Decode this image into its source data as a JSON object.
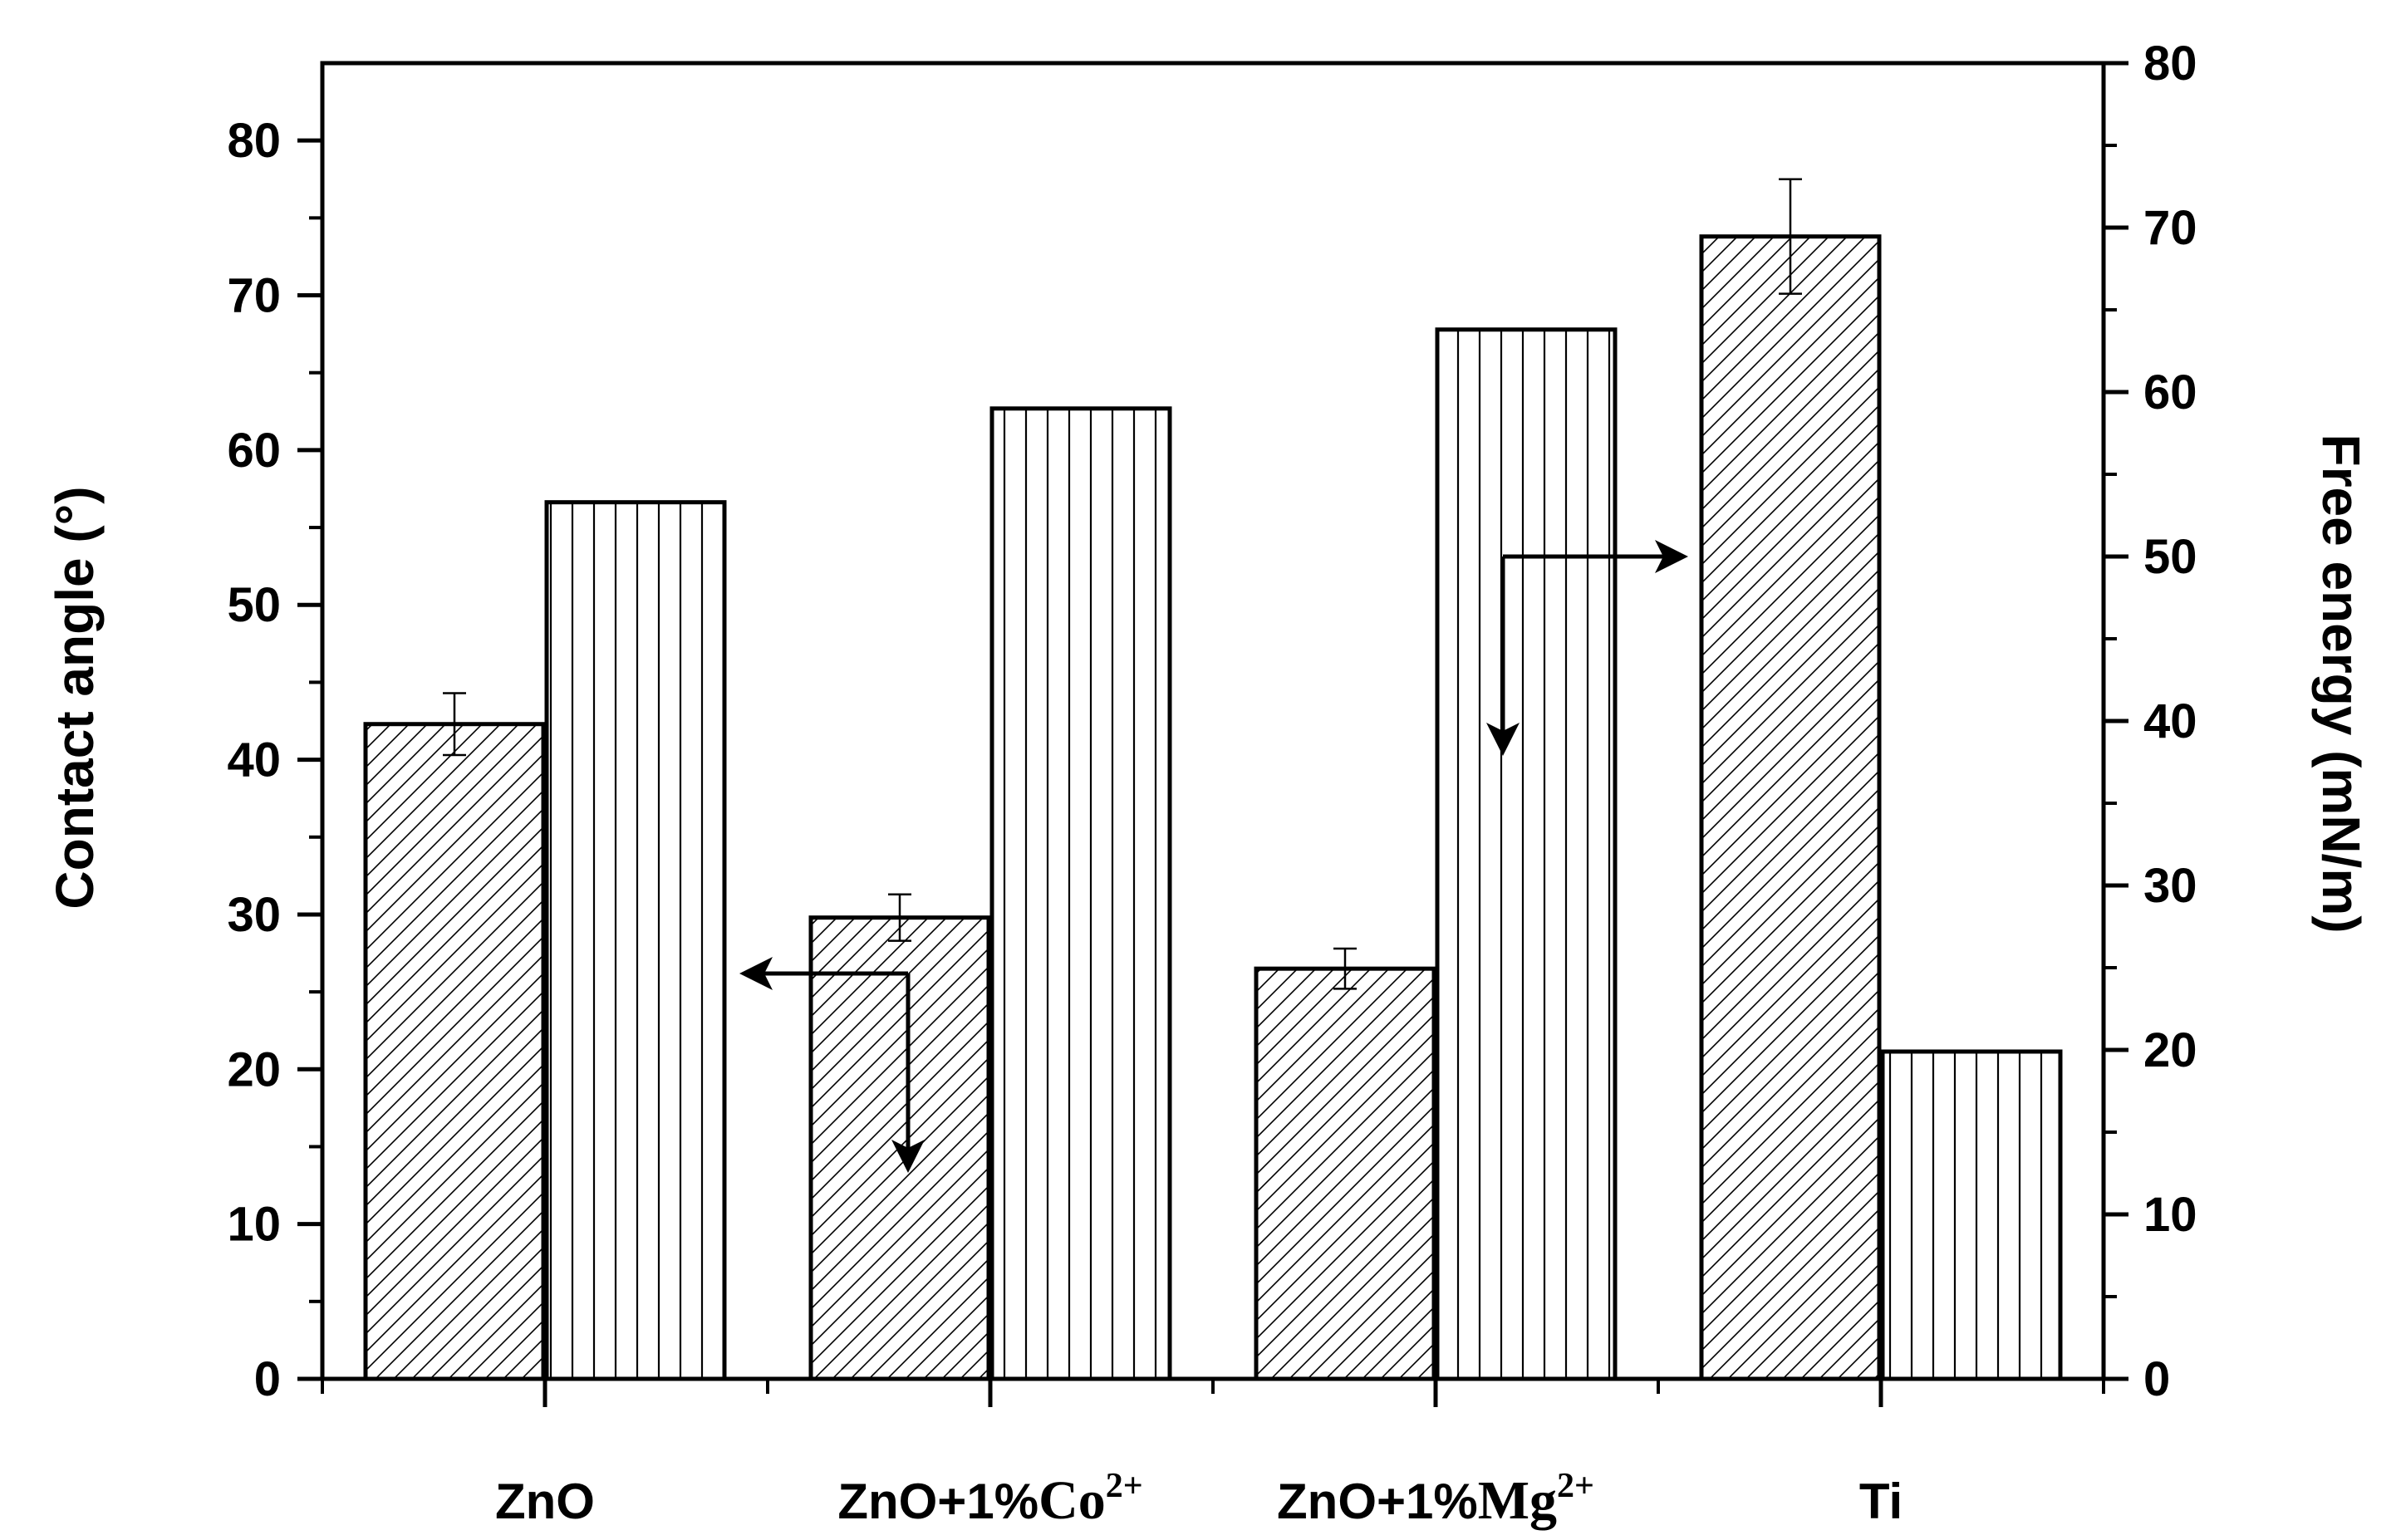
{
  "chart_data": {
    "type": "bar",
    "categories": [
      {
        "base": "ZnO",
        "ion": "",
        "sup": ""
      },
      {
        "base": "ZnO+1%",
        "ion": "Co",
        "sup": "2+"
      },
      {
        "base": "ZnO+1%",
        "ion": "Mg",
        "sup": "2+"
      },
      {
        "base": "Ti",
        "ion": "",
        "sup": ""
      }
    ],
    "series": [
      {
        "name": "Contact angle",
        "axis": "left",
        "pattern": "diagonal",
        "values": [
          42.3,
          29.8,
          26.5,
          73.8
        ],
        "errors": [
          2.0,
          1.5,
          1.3,
          3.7
        ]
      },
      {
        "name": "Free energy",
        "axis": "right",
        "pattern": "vertical",
        "values": [
          53.3,
          59.0,
          63.8,
          19.9
        ]
      }
    ],
    "left_axis": {
      "label": "Contact angle  (°)",
      "min": 0,
      "max": 85,
      "ticks": [
        0,
        10,
        20,
        30,
        40,
        50,
        60,
        70,
        80
      ],
      "tick_labels": [
        "0",
        "10",
        "20",
        "30",
        "40",
        "50",
        "60",
        "70",
        "80"
      ]
    },
    "right_axis": {
      "label": "Free energy  (mN/m)",
      "min": 0,
      "max": 80,
      "ticks": [
        0,
        10,
        20,
        30,
        40,
        50,
        60,
        70,
        80
      ],
      "tick_labels": [
        "0",
        "10",
        "20",
        "30",
        "40",
        "50",
        "60",
        "70",
        "80"
      ]
    },
    "annotations": [
      {
        "type": "arrow",
        "meaning": "contact angle bars read on left axis",
        "points_to": "left"
      },
      {
        "type": "arrow",
        "meaning": "free energy bars read on right axis",
        "points_to": "right"
      }
    ]
  }
}
